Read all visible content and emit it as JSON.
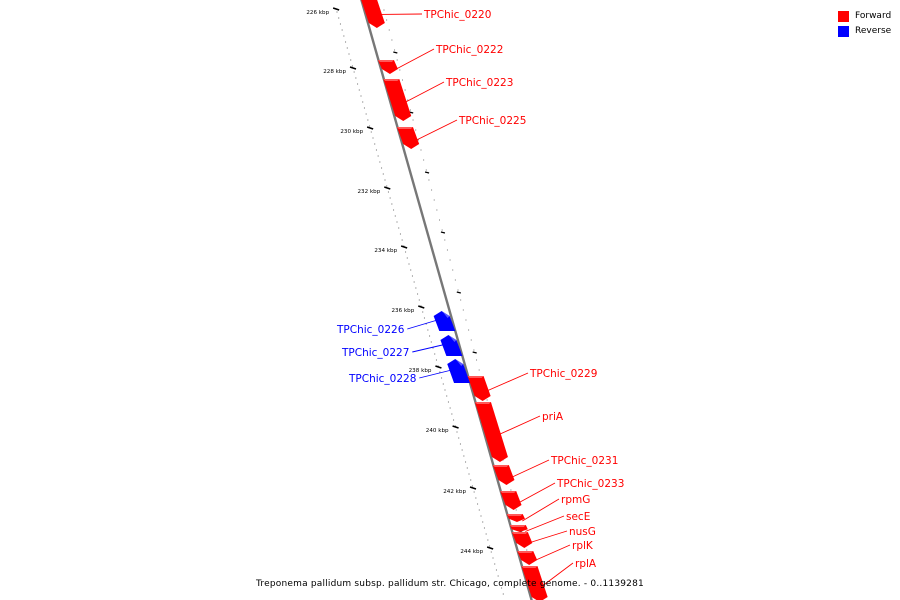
{
  "colors": {
    "forward": "#ff0000",
    "reverse": "#0000ff",
    "backbone": "#777777"
  },
  "legend": [
    {
      "label": "Forward",
      "color": "#ff0000"
    },
    {
      "label": "Reverse",
      "color": "#0000ff"
    }
  ],
  "caption": "Treponema pallidum subsp. pallidum str. Chicago, complete genome. - 0..1139281",
  "ticks": [
    "226 kbp",
    "228 kbp",
    "230 kbp",
    "232 kbp",
    "234 kbp",
    "236 kbp",
    "238 kbp",
    "240 kbp",
    "242 kbp",
    "244 kbp"
  ],
  "genes": [
    {
      "label": "TPChic_0220",
      "strand": "forward"
    },
    {
      "label": "TPChic_0222",
      "strand": "forward"
    },
    {
      "label": "TPChic_0223",
      "strand": "forward"
    },
    {
      "label": "TPChic_0225",
      "strand": "forward"
    },
    {
      "label": "TPChic_0226",
      "strand": "reverse"
    },
    {
      "label": "TPChic_0227",
      "strand": "reverse"
    },
    {
      "label": "TPChic_0228",
      "strand": "reverse"
    },
    {
      "label": "TPChic_0229",
      "strand": "forward"
    },
    {
      "label": "priA",
      "strand": "forward"
    },
    {
      "label": "TPChic_0231",
      "strand": "forward"
    },
    {
      "label": "TPChic_0233",
      "strand": "forward"
    },
    {
      "label": "rpmG",
      "strand": "forward"
    },
    {
      "label": "secE",
      "strand": "forward"
    },
    {
      "label": "nusG",
      "strand": "forward"
    },
    {
      "label": "rplK",
      "strand": "forward"
    },
    {
      "label": "rplA",
      "strand": "forward"
    }
  ]
}
